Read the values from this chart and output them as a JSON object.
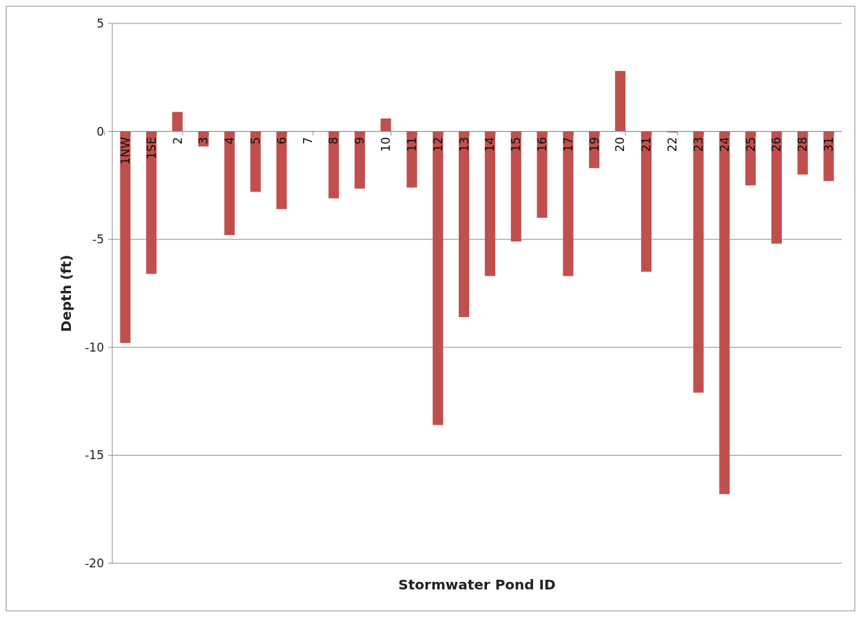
{
  "chart_data": {
    "type": "bar",
    "xlabel": "Stormwater Pond ID",
    "ylabel": "Depth (ft)",
    "categories": [
      "1NW",
      "1SE",
      "2",
      "3",
      "4",
      "5",
      "6",
      "7",
      "8",
      "9",
      "10",
      "11",
      "12",
      "13",
      "14",
      "15",
      "16",
      "17",
      "19",
      "20",
      "21",
      "22",
      "23",
      "24",
      "25",
      "26",
      "28",
      "31"
    ],
    "values": [
      -9.8,
      -6.6,
      0.9,
      -0.7,
      -4.8,
      -2.8,
      -3.6,
      0,
      -3.1,
      -2.65,
      0.6,
      -2.6,
      -13.6,
      -8.6,
      -6.7,
      -5.1,
      -4.0,
      -6.7,
      -1.7,
      2.8,
      -6.5,
      -0.05,
      -12.1,
      -16.8,
      -2.5,
      -5.2,
      -2.0,
      -2.3
    ],
    "color": "#c0504d",
    "ylim": [
      -20,
      5
    ],
    "yticks": [
      -20,
      -15,
      -10,
      -5,
      0,
      5
    ],
    "grid": "y"
  }
}
